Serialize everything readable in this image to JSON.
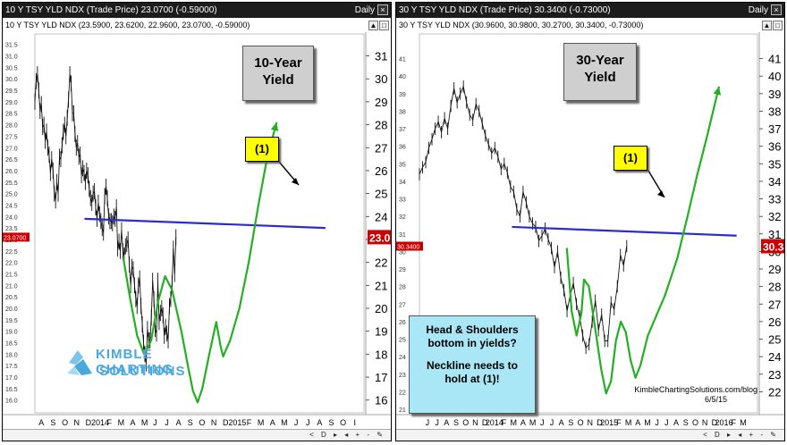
{
  "panels": [
    {
      "title_bar": "10 Y TSY YLD NDX (Trade Price)",
      "title_value": "23.0700 (-0.59000)",
      "timeframe": "Daily",
      "subtitle": "10 Y TSY YLD NDX (23.5900, 23.6200, 22.9600, 23.0700, -0.59000)",
      "box_title": [
        "10-Year",
        "Yield"
      ],
      "label": "(1)",
      "bottom_controls": "< D ▸ ◂ + - ✎",
      "chart_data": {
        "type": "line",
        "title": "10-Year Yield",
        "ylim": [
          15.6,
          31.8
        ],
        "left_ticks": [
          "31.5",
          "31.0",
          "30.5",
          "30.0",
          "29.5",
          "29.0",
          "28.5",
          "28.0",
          "27.5",
          "27.0",
          "26.5",
          "26.0",
          "25.5",
          "25.0",
          "24.5",
          "24.0",
          "23.5",
          "23.0",
          "22.5",
          "22.0",
          "21.5",
          "21.0",
          "20.5",
          "20.0",
          "19.5",
          "19.0",
          "18.5",
          "18.0",
          "17.5",
          "17.0",
          "16.5",
          "16.0"
        ],
        "right_ticks": [
          "31",
          "30",
          "29",
          "28",
          "27",
          "26",
          "25",
          "24",
          "23",
          "22",
          "21",
          "20",
          "19",
          "18",
          "17",
          "16"
        ],
        "last_price_label": "23.07",
        "left_last_label": "23.0700",
        "x_ticks": [
          "A",
          "S",
          "O",
          "N",
          "D",
          "2014",
          "F",
          "M",
          "A",
          "M",
          "J",
          "J",
          "A",
          "S",
          "O",
          "N",
          "D",
          "2015",
          "F",
          "M",
          "A",
          "M",
          "J",
          "J",
          "A",
          "S",
          "O",
          "I"
        ],
        "x_positions": [
          5,
          14,
          23,
          32,
          41,
          50,
          57,
          66,
          75,
          84,
          92,
          101,
          110,
          119,
          128,
          137,
          146,
          155,
          164,
          173,
          182,
          191,
          200,
          209,
          218,
          227,
          236,
          245
        ],
        "series_close": [
          29.0,
          29.9,
          30.2,
          29.5,
          28.6,
          28.9,
          27.9,
          28.0,
          27.3,
          27.7,
          27.0,
          26.7,
          25.9,
          26.5,
          26.0,
          25.0,
          24.7,
          25.5,
          25.0,
          26.6,
          26.5,
          27.1,
          27.7,
          28.0,
          27.5,
          28.3,
          29.1,
          30.2,
          29.8,
          28.5,
          28.5,
          27.6,
          27.0,
          27.2,
          26.6,
          26.7,
          25.8,
          26.1,
          25.9,
          25.5,
          26.0,
          25.8,
          25.2,
          24.8,
          24.6,
          25.0,
          25.1,
          24.4,
          23.9,
          24.6,
          24.1,
          23.8,
          23.5,
          23.3,
          24.9,
          25.3,
          24.8,
          24.0,
          23.8,
          23.8,
          23.7,
          24.0,
          23.9,
          24.4,
          22.6,
          22.9,
          22.5,
          23.4,
          22.5,
          22.3,
          22.7,
          22.8,
          23.0,
          21.9,
          21.0,
          21.8,
          21.7,
          21.0,
          20.4,
          20.1,
          21.0,
          21.3,
          20.1,
          19.3,
          18.5,
          18.0,
          17.6,
          19.1,
          18.6,
          18.6,
          19.6,
          21.2,
          20.4,
          19.1,
          18.9,
          21.2,
          19.4,
          19.8,
          20.0,
          19.7,
          18.8,
          19.2,
          18.9,
          18.6,
          20.1,
          20.4,
          21.1,
          22.6,
          21.5,
          23.1
        ],
        "neckline": {
          "x": [
            38,
            108
          ],
          "y": [
            23.9,
            23.5
          ]
        },
        "shoulder_curve": [
          [
            38,
            22.2
          ],
          [
            41,
            20.4
          ],
          [
            44,
            18.8
          ],
          [
            47,
            18.0
          ],
          [
            50,
            18.6
          ],
          [
            53,
            20.3
          ],
          [
            56,
            21.4
          ],
          [
            59,
            20.8
          ],
          [
            63,
            19.0
          ],
          [
            66,
            17.4
          ],
          [
            68,
            16.4
          ],
          [
            70,
            15.9
          ],
          [
            72,
            16.5
          ],
          [
            75,
            18.0
          ],
          [
            78,
            19.4
          ],
          [
            80,
            18.3
          ],
          [
            81,
            17.9
          ],
          [
            84,
            18.6
          ],
          [
            88,
            20.0
          ],
          [
            92,
            22.0
          ],
          [
            96,
            24.4
          ],
          [
            100,
            26.6
          ],
          [
            104,
            28.1
          ]
        ]
      }
    },
    {
      "title_bar": "30 Y TSY YLD NDX (Trade Price)",
      "title_value": "30.3400 (-0.73000)",
      "timeframe": "Daily",
      "subtitle": "30 Y TSY YLD NDX (30.9600, 30.9800, 30.2700, 30.3400, -0.73000)",
      "box_title": [
        "30-Year",
        "Yield"
      ],
      "label": "(1)",
      "bottom_controls": "< D ▸ ◂ + - ✎",
      "chart_data": {
        "type": "line",
        "title": "30-Year Yield",
        "ylim": [
          21.0,
          42.2
        ],
        "left_ticks": [
          "41",
          "40",
          "39",
          "38",
          "37",
          "36",
          "35",
          "34",
          "33",
          "32",
          "31",
          "30",
          "29",
          "28",
          "27",
          "26",
          "25",
          "24",
          "23",
          "22",
          "21"
        ],
        "right_ticks": [
          "41",
          "40",
          "39",
          "38",
          "37",
          "36",
          "35",
          "34",
          "33",
          "32",
          "31",
          "30",
          "29",
          "28",
          "27",
          "26",
          "25",
          "24",
          "23",
          "22"
        ],
        "last_price_label": "30.34",
        "left_last_label": "30.3400",
        "x_ticks": [
          "J",
          "J",
          "A",
          "S",
          "O",
          "N",
          "D",
          "2014",
          "F",
          "M",
          "A",
          "M",
          "J",
          "J",
          "A",
          "S",
          "O",
          "N",
          "D",
          "2015",
          "F",
          "M",
          "A",
          "M",
          "J",
          "J",
          "A",
          "S",
          "O",
          "N",
          "D",
          "2016",
          "F",
          "M"
        ],
        "x_positions": [
          5,
          11,
          17,
          23,
          29,
          35,
          41,
          47,
          53,
          59,
          65,
          71,
          77,
          83,
          89,
          95,
          101,
          107,
          113,
          119,
          125,
          131,
          137,
          143,
          149,
          155,
          161,
          167,
          173,
          179,
          185,
          191,
          197,
          203
        ],
        "series_close": [
          34.4,
          34.8,
          35.1,
          35.9,
          36.4,
          37.0,
          37.4,
          36.8,
          37.6,
          37.0,
          38.3,
          39.3,
          38.5,
          39.0,
          39.4,
          38.5,
          37.8,
          37.5,
          38.4,
          38.0,
          37.3,
          36.6,
          36.1,
          35.6,
          35.9,
          35.4,
          34.7,
          35.0,
          34.5,
          33.7,
          33.4,
          32.4,
          32.0,
          33.4,
          32.8,
          32.0,
          31.6,
          31.4,
          30.6,
          30.9,
          31.3,
          30.7,
          30.2,
          29.1,
          30.0,
          28.5,
          27.8,
          26.6,
          27.5,
          28.2,
          27.0,
          26.3,
          25.2,
          24.5,
          24.7,
          26.0,
          27.2,
          25.5,
          26.4,
          24.9,
          24.9,
          27.1,
          26.7,
          28.0,
          29.8,
          29.2,
          30.3
        ],
        "neckline": {
          "x": [
            58,
            130
          ],
          "y": [
            31.4,
            30.9
          ]
        },
        "shoulder_curve": [
          [
            60,
            30.2
          ],
          [
            62,
            26.6
          ],
          [
            64,
            25.2
          ],
          [
            66,
            26.5
          ],
          [
            67,
            28.4
          ],
          [
            69,
            28.0
          ],
          [
            72,
            25.2
          ],
          [
            74,
            23.3
          ],
          [
            76,
            21.9
          ],
          [
            78,
            22.6
          ],
          [
            80,
            24.9
          ],
          [
            82,
            26.0
          ],
          [
            84,
            25.4
          ],
          [
            86,
            23.8
          ],
          [
            88,
            22.8
          ],
          [
            90,
            23.5
          ],
          [
            93,
            25.2
          ],
          [
            100,
            27.5
          ],
          [
            105,
            29.6
          ],
          [
            109,
            31.9
          ],
          [
            113,
            34.3
          ],
          [
            117,
            36.5
          ],
          [
            122,
            39.4
          ]
        ]
      }
    }
  ],
  "annotation": {
    "lines": [
      "Head & Shoulders",
      "bottom in yields?",
      "Neckline needs to",
      "hold at (1)!"
    ]
  },
  "watermark_site": "KimbleChartingSolutions.com/blog",
  "watermark_date": "6/5/15",
  "logo": {
    "line1": "KIMBLE CHARTING",
    "line2": "SOLUTIONS"
  },
  "colors": {
    "neckline": "#2b2bd0",
    "shoulders": "#22b022",
    "price": "#111111",
    "title_box": "#cfcfcf",
    "label_box": "#ffff00",
    "annotation_box": "#a9e6f6",
    "last_price_label": "#cc0000"
  }
}
